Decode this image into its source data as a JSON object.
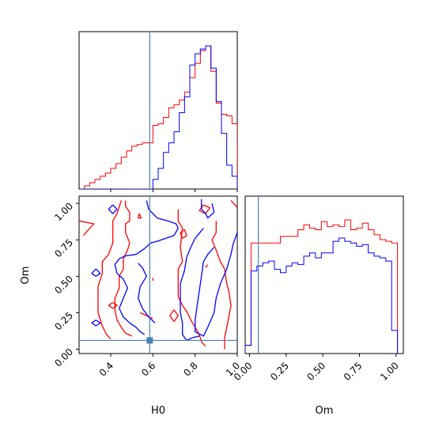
{
  "chart_data": {
    "type": "corner",
    "parameters": [
      "H0",
      "Om"
    ],
    "axis_labels": {
      "x_bottom_left": "H0",
      "x_bottom_right": "Om",
      "y_left": "Om"
    },
    "ranges": {
      "H0": [
        0.25,
        1.0
      ],
      "Om": [
        -0.03,
        1.05
      ]
    },
    "ticks": {
      "H0": {
        "values": [
          0.4,
          0.6,
          0.8,
          1.0
        ],
        "labels": [
          "0.4",
          "0.6",
          "0.8",
          "1.0"
        ]
      },
      "Om_y": {
        "values": [
          0.0,
          0.25,
          0.5,
          0.75,
          1.0
        ],
        "labels": [
          "0.00",
          "0.25",
          "0.50",
          "0.75",
          "1.00"
        ]
      },
      "Om_x": {
        "values": [
          0.0,
          0.25,
          0.5,
          0.75,
          1.0
        ],
        "labels": [
          "0.00",
          "0.25",
          "0.50",
          "0.75",
          "1.00"
        ]
      }
    },
    "truth": {
      "H0": 0.585,
      "Om": 0.06
    },
    "truth_color": "#4682b4",
    "colors": {
      "series_a": "#ff0000",
      "series_b": "#0000ff"
    },
    "hist_H0": {
      "edges": [
        0.25,
        0.275,
        0.3,
        0.325,
        0.35,
        0.375,
        0.4,
        0.425,
        0.45,
        0.475,
        0.5,
        0.525,
        0.55,
        0.575,
        0.6,
        0.625,
        0.65,
        0.675,
        0.7,
        0.725,
        0.75,
        0.775,
        0.8,
        0.825,
        0.85,
        0.875,
        0.9,
        0.925,
        0.95,
        0.975,
        1.0
      ],
      "series": [
        {
          "color": "#ff0000",
          "values": [
            0.0,
            0.02,
            0.04,
            0.06,
            0.08,
            0.1,
            0.13,
            0.16,
            0.2,
            0.24,
            0.27,
            0.28,
            0.29,
            0.29,
            0.4,
            0.41,
            0.45,
            0.51,
            0.53,
            0.56,
            0.61,
            0.7,
            0.79,
            0.87,
            0.9,
            0.74,
            0.54,
            0.47,
            0.46,
            0.41
          ]
        },
        {
          "color": "#0000ff",
          "values": [
            0.0,
            0.0,
            0.0,
            0.0,
            0.0,
            0.0,
            0.0,
            0.0,
            0.0,
            0.0,
            0.0,
            0.0,
            0.0,
            0.0,
            0.06,
            0.13,
            0.23,
            0.29,
            0.36,
            0.48,
            0.58,
            0.78,
            0.85,
            0.88,
            0.9,
            0.76,
            0.55,
            0.35,
            0.15,
            0.08
          ]
        }
      ]
    },
    "hist_Om": {
      "edges": [
        -0.03,
        0.01,
        0.05,
        0.09,
        0.13,
        0.17,
        0.21,
        0.25,
        0.29,
        0.33,
        0.37,
        0.41,
        0.45,
        0.49,
        0.53,
        0.57,
        0.61,
        0.65,
        0.69,
        0.73,
        0.77,
        0.81,
        0.85,
        0.89,
        0.93,
        0.97,
        1.01
      ],
      "series": [
        {
          "color": "#ff0000",
          "values": [
            0.05,
            0.67,
            0.67,
            0.67,
            0.67,
            0.67,
            0.71,
            0.71,
            0.71,
            0.75,
            0.78,
            0.76,
            0.75,
            0.8,
            0.77,
            0.78,
            0.77,
            0.81,
            0.75,
            0.76,
            0.79,
            0.75,
            0.72,
            0.69,
            0.68,
            0.67
          ]
        },
        {
          "color": "#0000ff",
          "values": [
            0.05,
            0.5,
            0.53,
            0.55,
            0.56,
            0.51,
            0.49,
            0.53,
            0.55,
            0.54,
            0.59,
            0.61,
            0.58,
            0.61,
            0.61,
            0.68,
            0.7,
            0.68,
            0.67,
            0.65,
            0.66,
            0.61,
            0.59,
            0.58,
            0.56,
            0.14
          ]
        }
      ]
    },
    "contours": [
      {
        "color": "#ff0000",
        "points": [
          [
            0.25,
            0.88
          ],
          [
            0.32,
            0.86
          ],
          [
            0.27,
            0.78
          ]
        ]
      },
      {
        "color": "#ff0000",
        "points": [
          [
            0.45,
            1.02
          ],
          [
            0.43,
            0.93
          ],
          [
            0.41,
            0.88
          ],
          [
            0.41,
            0.73
          ],
          [
            0.39,
            0.65
          ],
          [
            0.36,
            0.6
          ],
          [
            0.36,
            0.52
          ],
          [
            0.34,
            0.43
          ],
          [
            0.34,
            0.33
          ],
          [
            0.34,
            0.25
          ],
          [
            0.36,
            0.16
          ],
          [
            0.38,
            0.1
          ],
          [
            0.4,
            0.07
          ]
        ]
      },
      {
        "color": "#ff0000",
        "points": [
          [
            0.47,
            1.02
          ],
          [
            0.47,
            0.98
          ],
          [
            0.49,
            0.94
          ],
          [
            0.49,
            0.88
          ],
          [
            0.47,
            0.86
          ],
          [
            0.47,
            0.8
          ],
          [
            0.49,
            0.73
          ],
          [
            0.48,
            0.68
          ],
          [
            0.46,
            0.62
          ],
          [
            0.46,
            0.55
          ],
          [
            0.44,
            0.5
          ],
          [
            0.44,
            0.42
          ],
          [
            0.42,
            0.35
          ],
          [
            0.42,
            0.27
          ],
          [
            0.43,
            0.2
          ],
          [
            0.45,
            0.15
          ],
          [
            0.47,
            0.11
          ],
          [
            0.5,
            0.09
          ]
        ]
      },
      {
        "color": "#ff0000",
        "points": [
          [
            0.6,
            0.21
          ],
          [
            0.54,
            0.25
          ]
        ]
      },
      {
        "color": "#ff0000",
        "points": [
          [
            0.535,
            0.93
          ],
          [
            0.53,
            0.9
          ],
          [
            0.545,
            0.9
          ],
          [
            0.535,
            0.93
          ]
        ]
      },
      {
        "color": "#ff0000",
        "points": [
          [
            0.41,
            0.32
          ],
          [
            0.43,
            0.3
          ],
          [
            0.41,
            0.28
          ],
          [
            0.39,
            0.3
          ],
          [
            0.41,
            0.32
          ]
        ]
      },
      {
        "color": "#ff0000",
        "points": [
          [
            0.7,
            0.27
          ],
          [
            0.72,
            0.23
          ],
          [
            0.7,
            0.19
          ],
          [
            0.68,
            0.23
          ],
          [
            0.7,
            0.27
          ]
        ]
      },
      {
        "color": "#ff0000",
        "points": [
          [
            0.74,
            0.76
          ],
          [
            0.76,
            0.78
          ],
          [
            0.75,
            0.82
          ],
          [
            0.73,
            0.8
          ],
          [
            0.74,
            0.76
          ]
        ]
      },
      {
        "color": "#ff0000",
        "points": [
          [
            0.84,
            0.99
          ],
          [
            0.87,
            0.97
          ],
          [
            0.85,
            0.93
          ],
          [
            0.82,
            0.95
          ],
          [
            0.84,
            0.99
          ]
        ]
      },
      {
        "color": "#ff0000",
        "points": [
          [
            0.72,
            0.96
          ],
          [
            0.72,
            0.88
          ],
          [
            0.74,
            0.83
          ],
          [
            0.73,
            0.7
          ],
          [
            0.74,
            0.6
          ],
          [
            0.72,
            0.55
          ],
          [
            0.72,
            0.46
          ],
          [
            0.72,
            0.36
          ],
          [
            0.74,
            0.3
          ],
          [
            0.76,
            0.26
          ],
          [
            0.78,
            0.2
          ],
          [
            0.8,
            0.15
          ],
          [
            0.82,
            0.1
          ],
          [
            0.83,
            0.05
          ],
          [
            0.85,
            0.02
          ]
        ]
      },
      {
        "color": "#ff0000",
        "points": [
          [
            0.9,
            0.88
          ],
          [
            0.9,
            0.8
          ],
          [
            0.88,
            0.75
          ],
          [
            0.9,
            0.68
          ],
          [
            0.92,
            0.6
          ],
          [
            0.94,
            0.55
          ],
          [
            0.95,
            0.45
          ],
          [
            0.96,
            0.4
          ],
          [
            0.97,
            0.3
          ],
          [
            0.96,
            0.22
          ],
          [
            0.95,
            0.15
          ],
          [
            0.94,
            0.08
          ],
          [
            0.94,
            0.0
          ]
        ]
      },
      {
        "color": "#ff0000",
        "points": [
          [
            0.97,
            1.02
          ],
          [
            0.99,
            0.99
          ],
          [
            1.0,
            0.97
          ]
        ]
      },
      {
        "color": "#ff0000",
        "points": [
          [
            0.85,
            0.56
          ],
          [
            0.86,
            0.58
          ]
        ]
      },
      {
        "color": "#ff0000",
        "points": [
          [
            0.6,
            0.47
          ],
          [
            0.6,
            0.49
          ]
        ]
      },
      {
        "color": "#0000ff",
        "points": [
          [
            0.57,
            1.02
          ],
          [
            0.58,
            0.96
          ],
          [
            0.6,
            0.93
          ],
          [
            0.62,
            0.9
          ],
          [
            0.67,
            0.88
          ],
          [
            0.71,
            0.86
          ],
          [
            0.72,
            0.83
          ],
          [
            0.7,
            0.78
          ],
          [
            0.66,
            0.76
          ],
          [
            0.62,
            0.74
          ],
          [
            0.59,
            0.73
          ],
          [
            0.56,
            0.69
          ],
          [
            0.52,
            0.65
          ],
          [
            0.47,
            0.64
          ],
          [
            0.44,
            0.62
          ],
          [
            0.42,
            0.58
          ],
          [
            0.43,
            0.52
          ],
          [
            0.46,
            0.48
          ],
          [
            0.48,
            0.42
          ],
          [
            0.46,
            0.35
          ],
          [
            0.44,
            0.28
          ],
          [
            0.46,
            0.22
          ],
          [
            0.49,
            0.18
          ],
          [
            0.52,
            0.15
          ],
          [
            0.54,
            0.12
          ],
          [
            0.56,
            0.1
          ]
        ]
      },
      {
        "color": "#0000ff",
        "points": [
          [
            0.53,
            0.59
          ],
          [
            0.55,
            0.56
          ],
          [
            0.57,
            0.5
          ],
          [
            0.54,
            0.43
          ],
          [
            0.53,
            0.35
          ],
          [
            0.55,
            0.28
          ],
          [
            0.58,
            0.22
          ],
          [
            0.61,
            0.18
          ]
        ]
      },
      {
        "color": "#0000ff",
        "points": [
          [
            0.83,
            1.03
          ],
          [
            0.83,
            0.96
          ],
          [
            0.85,
            0.93
          ],
          [
            0.86,
            0.9
          ],
          [
            0.89,
            0.94
          ],
          [
            0.88,
            1.0
          ]
        ]
      },
      {
        "color": "#0000ff",
        "points": [
          [
            0.84,
            0.83
          ],
          [
            0.8,
            0.76
          ],
          [
            0.78,
            0.7
          ],
          [
            0.76,
            0.63
          ],
          [
            0.75,
            0.54
          ],
          [
            0.73,
            0.45
          ],
          [
            0.73,
            0.35
          ],
          [
            0.73,
            0.25
          ],
          [
            0.74,
            0.18
          ],
          [
            0.74,
            0.1
          ],
          [
            0.76,
            0.06
          ],
          [
            0.79,
            0.08
          ],
          [
            0.82,
            0.09
          ]
        ]
      },
      {
        "color": "#0000ff",
        "points": [
          [
            0.89,
            0.7
          ],
          [
            0.86,
            0.65
          ],
          [
            0.84,
            0.6
          ],
          [
            0.83,
            0.5
          ],
          [
            0.82,
            0.4
          ],
          [
            0.81,
            0.3
          ],
          [
            0.8,
            0.2
          ],
          [
            0.8,
            0.12
          ],
          [
            0.84,
            0.09
          ],
          [
            0.86,
            0.15
          ],
          [
            0.89,
            0.25
          ],
          [
            0.9,
            0.35
          ],
          [
            0.92,
            0.45
          ],
          [
            0.95,
            0.55
          ],
          [
            0.97,
            0.65
          ],
          [
            0.98,
            0.72
          ],
          [
            1.0,
            0.8
          ]
        ]
      },
      {
        "color": "#0000ff",
        "points": [
          [
            0.33,
            0.55
          ],
          [
            0.35,
            0.52
          ],
          [
            0.33,
            0.5
          ],
          [
            0.31,
            0.52
          ],
          [
            0.33,
            0.55
          ]
        ]
      },
      {
        "color": "#0000ff",
        "points": [
          [
            0.33,
            0.2
          ],
          [
            0.35,
            0.18
          ],
          [
            0.33,
            0.16
          ],
          [
            0.31,
            0.18
          ],
          [
            0.33,
            0.2
          ]
        ]
      },
      {
        "color": "#0000ff",
        "points": [
          [
            0.41,
            0.99
          ],
          [
            0.43,
            0.96
          ],
          [
            0.41,
            0.93
          ],
          [
            0.39,
            0.96
          ],
          [
            0.41,
            0.99
          ]
        ]
      }
    ]
  }
}
